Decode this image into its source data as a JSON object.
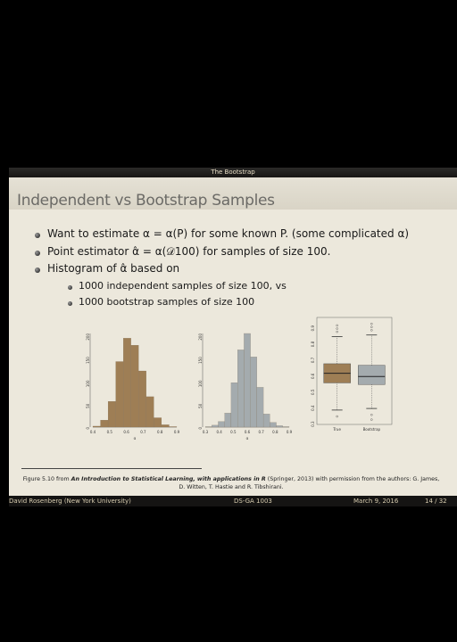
{
  "section_title": "The Bootstrap",
  "slide_title": "Independent vs Bootstrap Samples",
  "bullets": [
    "Want to estimate α = α(P) for some known P. (some complicated α)",
    "Point estimator α̂ = α(𝒟100) for samples of size 100.",
    "Histogram of α̂ based on"
  ],
  "sub_bullets": [
    "1000 independent samples of size 100, vs",
    "1000 bootstrap samples of size 100"
  ],
  "caption": {
    "prefix": "Figure 5.10 from ",
    "book": "An Introduction to Statistical Learning, with applications in R",
    "suffix": " (Springer, 2013) with permission from the authors: G. James, D. Witten, T. Hastie and R. Tibshirani."
  },
  "footer": {
    "author": "David Rosenberg (New York University)",
    "course": "DS-GA 1003",
    "date": "March 9, 2016",
    "page": "14 / 32"
  },
  "colors": {
    "true_fill": "#9e7e55",
    "bootstrap_fill": "#a4abae",
    "footer_text": "#d8cdb0"
  },
  "chart_data": [
    {
      "type": "bar",
      "categories": [
        "0.4",
        "0.45",
        "0.5",
        "0.55",
        "0.6",
        "0.65",
        "0.7",
        "0.75",
        "0.8",
        "0.85",
        "0.9"
      ],
      "values": [
        2,
        15,
        55,
        140,
        190,
        175,
        120,
        65,
        20,
        5,
        1
      ],
      "x_tick_labels": [
        "0.4",
        "0.5",
        "0.6",
        "0.7",
        "0.8",
        "0.9"
      ],
      "y_tick_labels": [
        "0",
        "50",
        "100",
        "150",
        "200"
      ],
      "xlabel": "α",
      "ylim": [
        0,
        200
      ]
    },
    {
      "type": "bar",
      "categories": [
        "0.3",
        "0.35",
        "0.4",
        "0.45",
        "0.5",
        "0.55",
        "0.6",
        "0.65",
        "0.7",
        "0.75",
        "0.8",
        "0.85",
        "0.9"
      ],
      "values": [
        1,
        4,
        12,
        30,
        95,
        165,
        200,
        150,
        85,
        28,
        10,
        3,
        1
      ],
      "x_tick_labels": [
        "0.3",
        "0.4",
        "0.5",
        "0.6",
        "0.7",
        "0.8",
        "0.9"
      ],
      "y_tick_labels": [
        "0",
        "50",
        "100",
        "150",
        "200"
      ],
      "xlabel": "α",
      "ylim": [
        0,
        200
      ]
    },
    {
      "type": "box",
      "categories": [
        "True",
        "Bootstrap"
      ],
      "boxes": [
        {
          "whisker_low": 0.37,
          "q1": 0.54,
          "median": 0.6,
          "q3": 0.66,
          "whisker_high": 0.83,
          "outliers": [
            0.86,
            0.88,
            0.9,
            0.33
          ]
        },
        {
          "whisker_low": 0.38,
          "q1": 0.53,
          "median": 0.58,
          "q3": 0.65,
          "whisker_high": 0.84,
          "outliers": [
            0.87,
            0.89,
            0.91,
            0.34,
            0.31
          ]
        }
      ],
      "y_tick_labels": [
        "0.3",
        "0.4",
        "0.5",
        "0.6",
        "0.7",
        "0.8",
        "0.9"
      ],
      "ylim": [
        0.28,
        0.95
      ]
    }
  ]
}
